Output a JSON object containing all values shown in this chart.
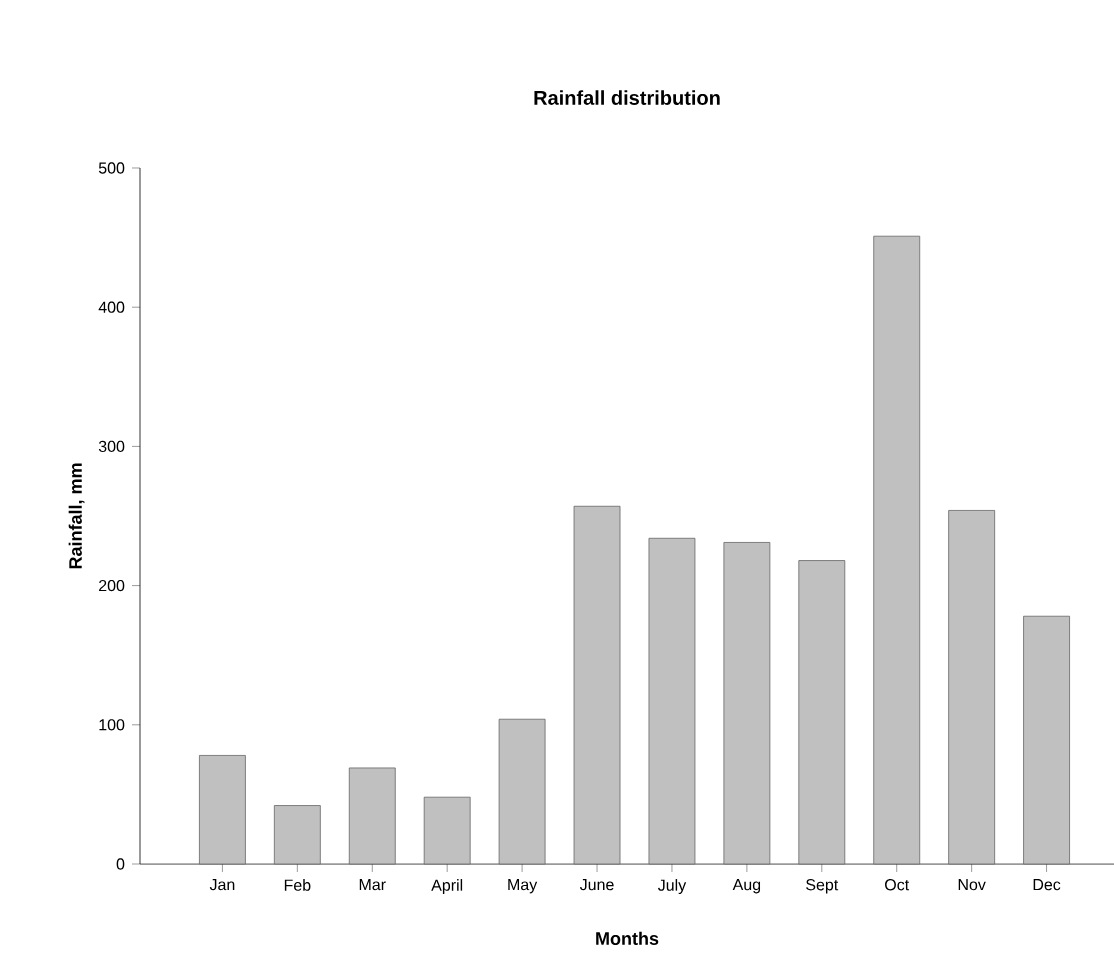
{
  "chart_data": {
    "type": "bar",
    "title": "Rainfall distribution",
    "xlabel": "Months",
    "ylabel": "Rainfall, mm",
    "categories": [
      "Jan",
      "Feb",
      "Mar",
      "April",
      "May",
      "June",
      "July",
      "Aug",
      "Sept",
      "Oct",
      "Nov",
      "Dec"
    ],
    "values": [
      78,
      42,
      69,
      48,
      104,
      257,
      234,
      231,
      218,
      451,
      254,
      178
    ],
    "color": "#c0c0c0",
    "ylim": [
      0,
      500
    ],
    "yticks": [
      0,
      100,
      200,
      300,
      400,
      500
    ],
    "grid": false
  }
}
